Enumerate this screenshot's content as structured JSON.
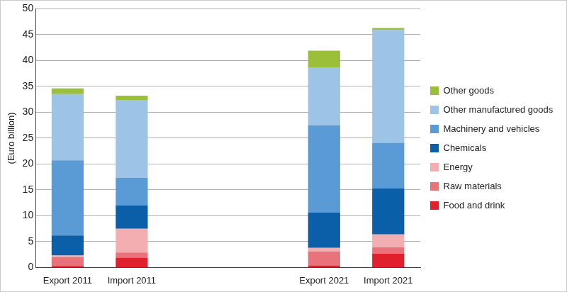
{
  "chart_data": {
    "type": "bar",
    "y_label": "(Euro billion)",
    "categories": [
      "Export 2011",
      "Import 2011",
      null,
      null,
      "Export 2021",
      "Import 2021"
    ],
    "series": [
      {
        "name": "Food and drink",
        "color": "#e0202c",
        "values": [
          0.3,
          1.9,
          null,
          null,
          0.4,
          2.7
        ]
      },
      {
        "name": "Raw materials",
        "color": "#e8737a",
        "values": [
          1.7,
          1.0,
          null,
          null,
          2.7,
          1.2
        ]
      },
      {
        "name": "Energy",
        "color": "#f2aeb0",
        "values": [
          0.3,
          4.6,
          null,
          null,
          0.7,
          2.5
        ]
      },
      {
        "name": "Chemicals",
        "color": "#0b5ea8",
        "values": [
          3.9,
          4.5,
          null,
          null,
          6.8,
          8.9
        ]
      },
      {
        "name": "Machinery and vehicles",
        "color": "#5b9bd5",
        "values": [
          14.5,
          5.3,
          null,
          null,
          16.9,
          8.8
        ]
      },
      {
        "name": "Other manufactured goods",
        "color": "#9dc3e6",
        "values": [
          12.8,
          15.1,
          null,
          null,
          11.2,
          21.8
        ]
      },
      {
        "name": "Other goods",
        "color": "#9cbf3a",
        "values": [
          1.1,
          0.8,
          null,
          null,
          3.2,
          0.4
        ]
      }
    ],
    "ylim": [
      0,
      50
    ],
    "yticks": [
      0,
      5,
      10,
      15,
      20,
      25,
      30,
      35,
      40,
      45,
      50
    ],
    "stacked": true,
    "grid": true,
    "legend": "right"
  }
}
